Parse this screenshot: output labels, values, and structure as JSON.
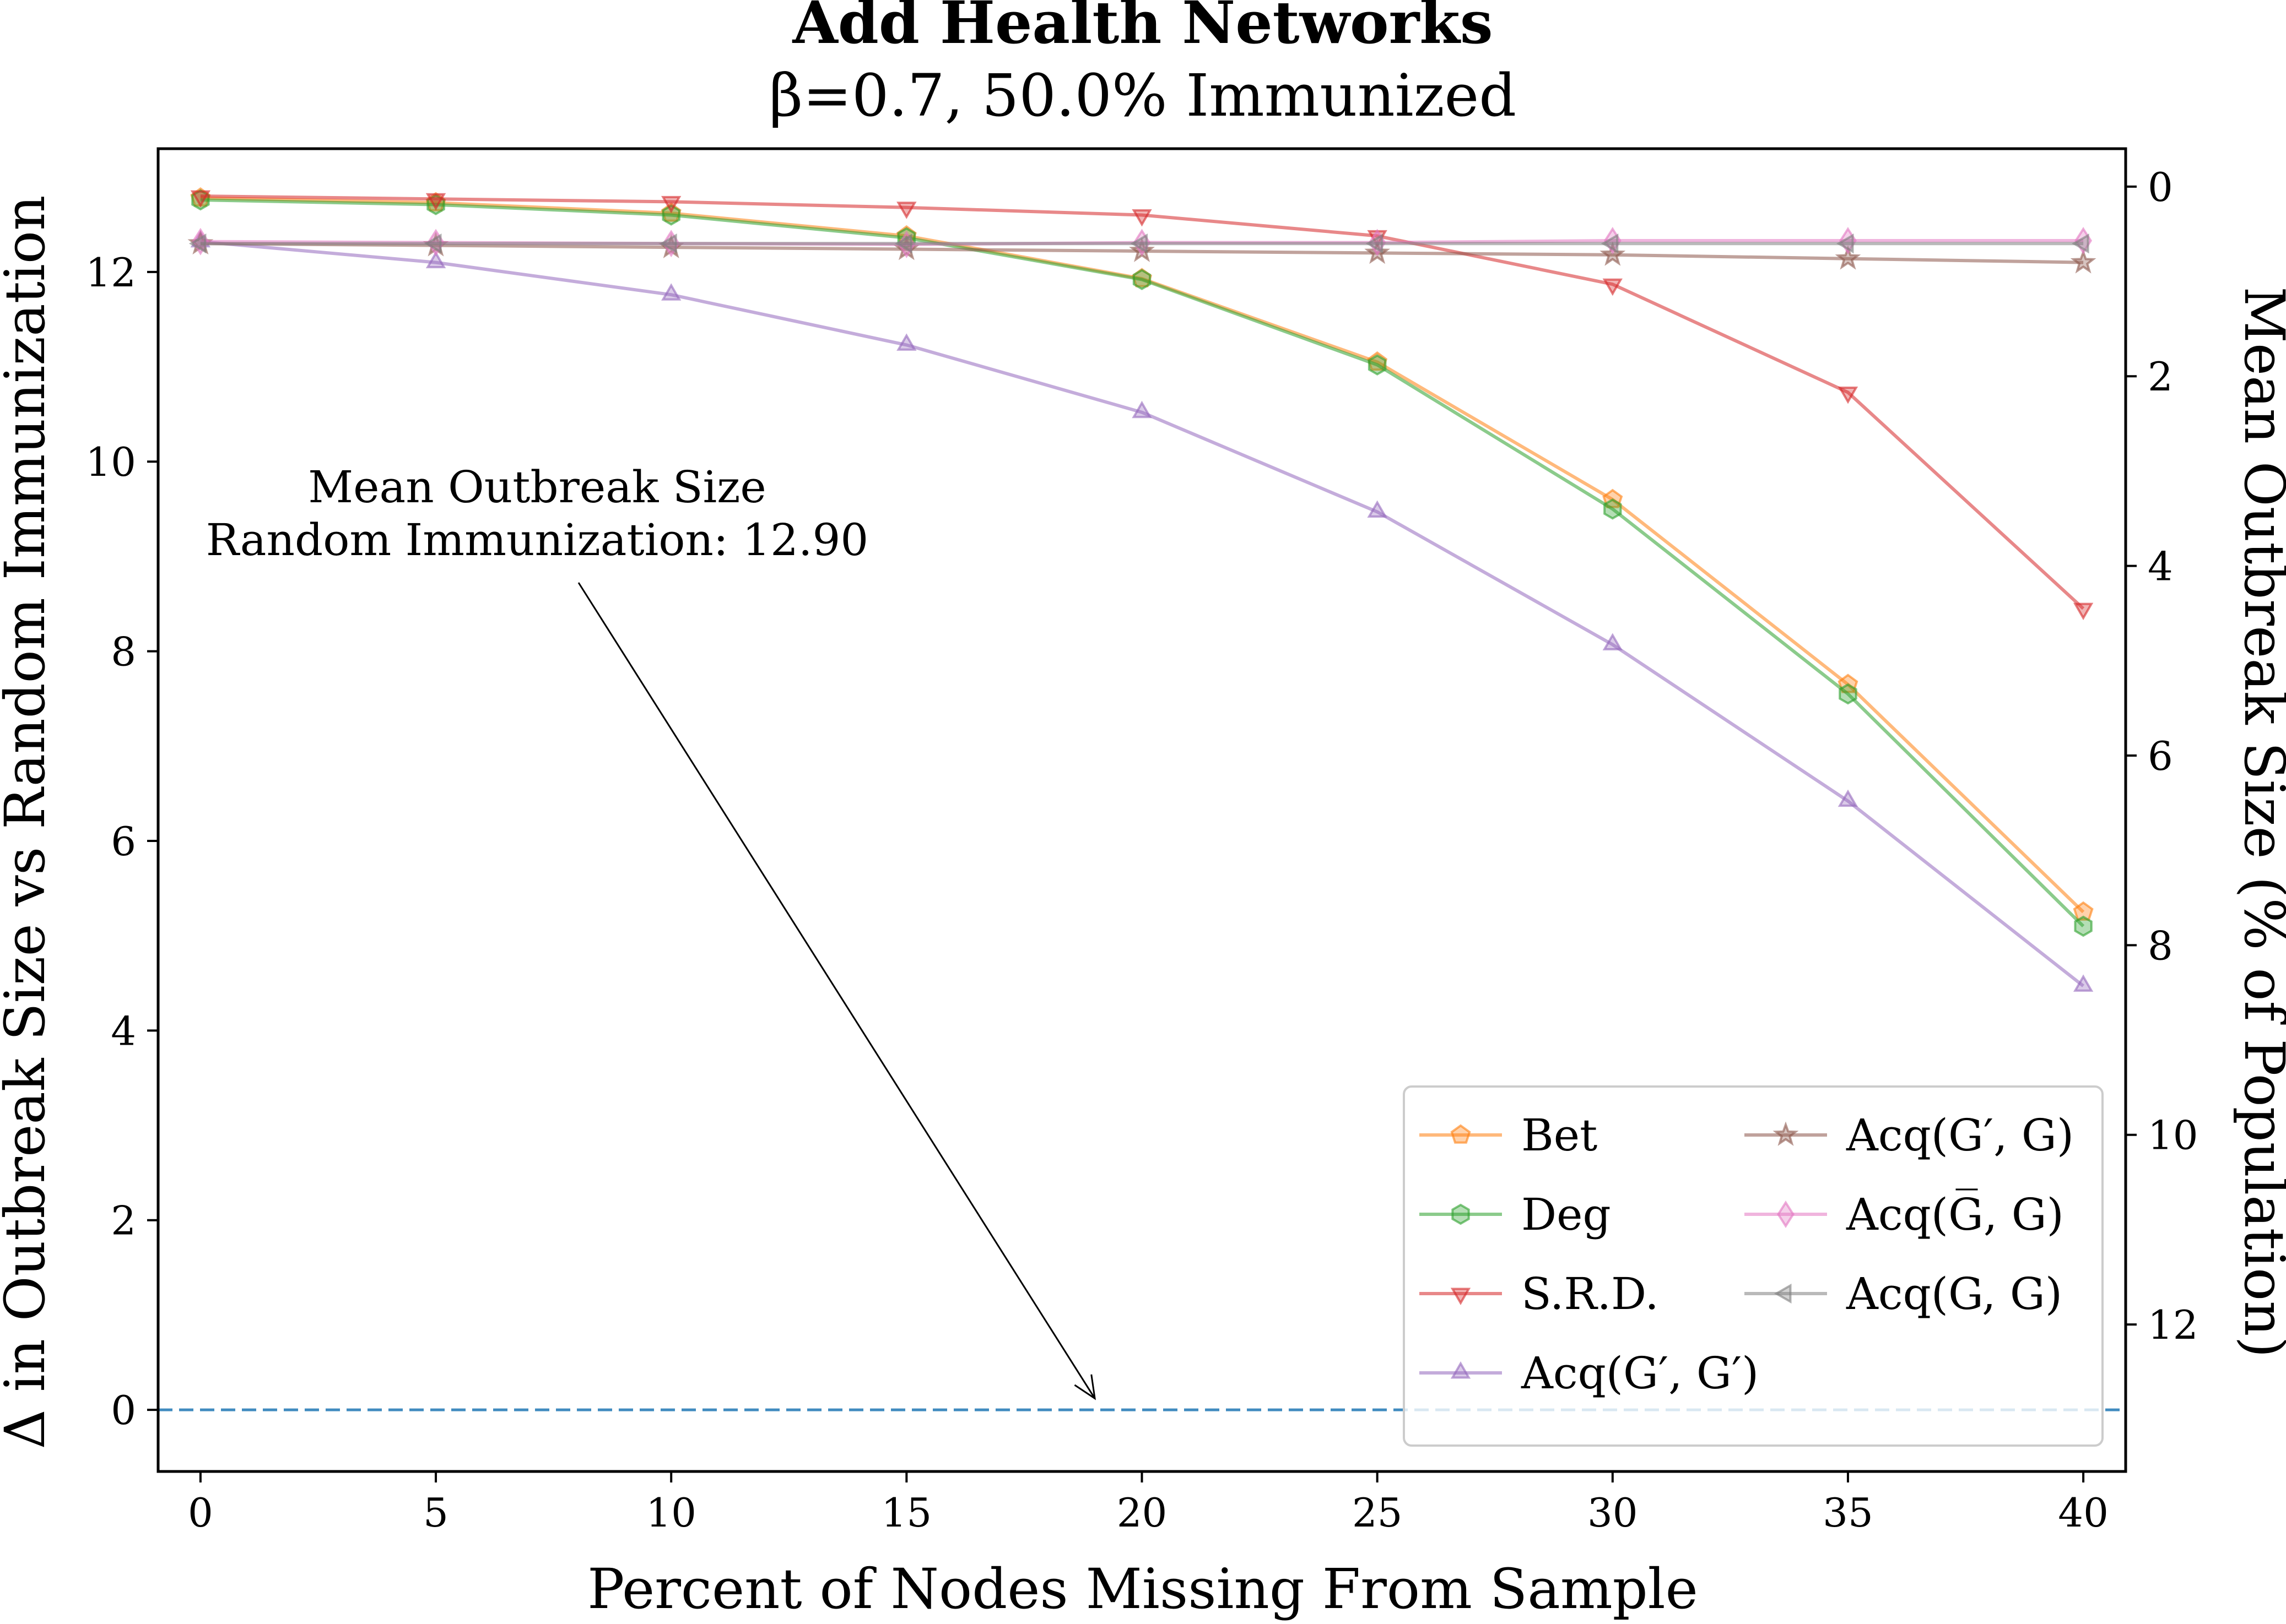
{
  "chart_data": {
    "type": "line",
    "title": "Add Health Networks",
    "subtitle": "β=0.7, 50.0% Immunized",
    "xlabel": "Percent of Nodes Missing From Sample",
    "ylabel": "Δ in Outbreak Size vs Random Immunization",
    "ylabel_right": "Mean Outbreak Size (% of Population)",
    "x": [
      0,
      5,
      10,
      15,
      20,
      25,
      30,
      35,
      40
    ],
    "xlim": [
      -0.9,
      40.9
    ],
    "ylim": [
      -0.65,
      13.3
    ],
    "x_ticks": [
      0,
      5,
      10,
      15,
      20,
      25,
      30,
      35,
      40
    ],
    "y_ticks": [
      0,
      2,
      4,
      6,
      8,
      10,
      12
    ],
    "y2_ticks": [
      0,
      2,
      4,
      6,
      8,
      10,
      12
    ],
    "y2_reference": 12.9,
    "grid": false,
    "legend_position": "lower-right",
    "legend_columns": 2,
    "series": [
      {
        "name": "Bet",
        "color": "#ff7f0e",
        "marker": "pentagon",
        "values": [
          12.78,
          12.73,
          12.62,
          12.38,
          11.93,
          11.05,
          9.6,
          7.65,
          5.25
        ]
      },
      {
        "name": "Deg",
        "color": "#2ca02c",
        "marker": "hexagon",
        "values": [
          12.76,
          12.71,
          12.6,
          12.36,
          11.92,
          11.02,
          9.5,
          7.55,
          5.1
        ]
      },
      {
        "name": "S.R.D.",
        "color": "#d62728",
        "marker": "triangle-down",
        "values": [
          12.8,
          12.77,
          12.74,
          12.68,
          12.6,
          12.38,
          11.87,
          10.73,
          8.45
        ]
      },
      {
        "name": "Acq(G′, G′)",
        "color": "#9467bd",
        "marker": "triangle-up",
        "values": [
          12.32,
          12.1,
          11.76,
          11.23,
          10.52,
          9.47,
          8.07,
          6.42,
          4.47
        ]
      },
      {
        "name": "Acq(G′, G)",
        "color": "#8c564b",
        "marker": "star",
        "values": [
          12.3,
          12.28,
          12.26,
          12.24,
          12.22,
          12.2,
          12.18,
          12.14,
          12.1
        ]
      },
      {
        "name": "Acq(G̅, G)",
        "color": "#e377c2",
        "marker": "diamond",
        "values": [
          12.32,
          12.31,
          12.3,
          12.29,
          12.31,
          12.31,
          12.33,
          12.33,
          12.33
        ]
      },
      {
        "name": "Acq(G, G)",
        "color": "#7f7f7f",
        "marker": "triangle-left",
        "values": [
          12.3,
          12.3,
          12.3,
          12.3,
          12.3,
          12.3,
          12.3,
          12.3,
          12.3
        ]
      }
    ],
    "reference_line": {
      "y": 0,
      "color": "#1f77b4",
      "style": "dashed"
    },
    "annotation": {
      "lines": [
        "Mean Outbreak Size",
        "Random Immunization: 12.90"
      ],
      "arrow_to": {
        "x": 19,
        "y": 0.12
      }
    }
  }
}
